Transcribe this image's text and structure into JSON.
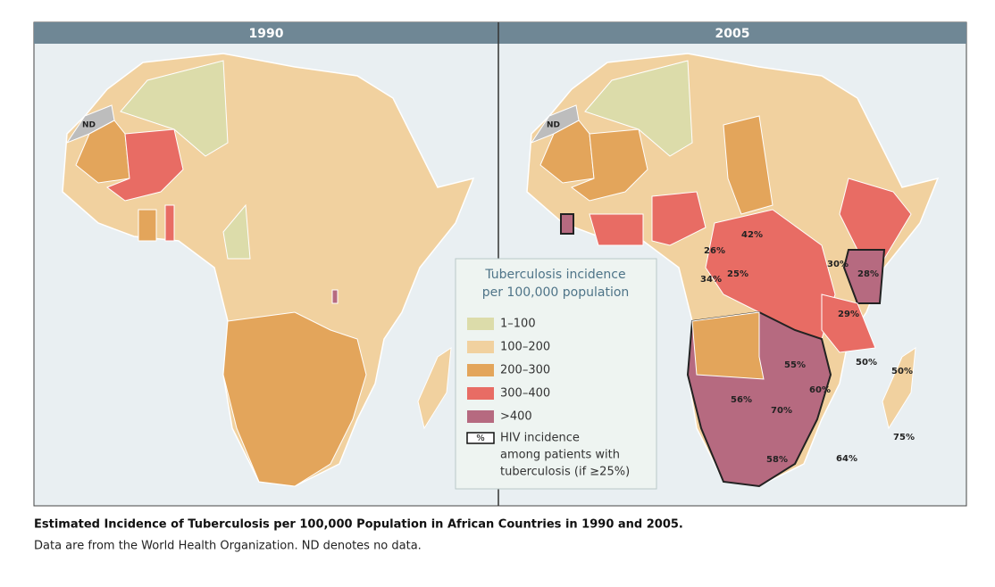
{
  "panels": [
    {
      "title": "1990",
      "nd": "ND"
    },
    {
      "title": "2005",
      "nd": "ND"
    }
  ],
  "legend": {
    "title": [
      "Tuberculosis incidence",
      "per 100,000 population"
    ],
    "items": [
      {
        "label": "1–100",
        "color": "#dcdcaa"
      },
      {
        "label": "100–200",
        "color": "#f1d19f"
      },
      {
        "label": "200–300",
        "color": "#e3a55b"
      },
      {
        "label": "300–400",
        "color": "#e86c64"
      },
      {
        "label": ">400",
        "color": "#b66a80"
      }
    ],
    "hiv": {
      "symbol": "%",
      "text": [
        "HIV incidence",
        "among patients with",
        "tuberculosis (if ≥25%)"
      ]
    }
  },
  "labels": [
    "26%",
    "42%",
    "34%",
    "25%",
    "30%",
    "28%",
    "29%",
    "55%",
    "50%",
    "50%",
    "56%",
    "60%",
    "70%",
    "75%",
    "58%",
    "64%"
  ],
  "caption": {
    "title": "Estimated Incidence of Tuberculosis per 100,000 Population in African Countries in 1990 and 2005.",
    "text": "Data are from the World Health Organization. ND denotes no data."
  }
}
